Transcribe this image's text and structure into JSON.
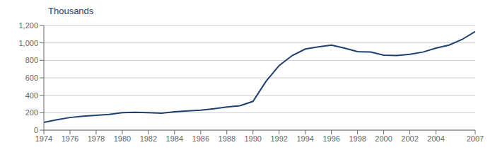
{
  "chart_data": {
    "type": "line",
    "x": [
      1974,
      1975,
      1976,
      1977,
      1978,
      1979,
      1980,
      1981,
      1982,
      1983,
      1984,
      1985,
      1986,
      1987,
      1988,
      1989,
      1990,
      1991,
      1992,
      1993,
      1994,
      1995,
      1996,
      1997,
      1998,
      1999,
      2000,
      2001,
      2002,
      2003,
      2004,
      2005,
      2006,
      2007
    ],
    "values": [
      88,
      120,
      145,
      160,
      170,
      180,
      200,
      205,
      200,
      195,
      210,
      220,
      230,
      245,
      265,
      280,
      330,
      560,
      740,
      855,
      930,
      955,
      975,
      940,
      900,
      895,
      860,
      855,
      870,
      895,
      940,
      975,
      1040,
      1130
    ],
    "color": "#1F3F6E",
    "xlim": [
      1974,
      2007
    ],
    "xticks": [
      1974,
      1976,
      1978,
      1980,
      1982,
      1984,
      1986,
      1988,
      1990,
      1992,
      1994,
      1996,
      1998,
      2000,
      2002,
      2004,
      2007
    ],
    "ylim": [
      0,
      1200
    ],
    "yticks": [
      0,
      200,
      400,
      600,
      800,
      {
        "value": 1000,
        "label": "1,000"
      },
      {
        "value": 1200,
        "label": "1,200"
      }
    ],
    "annotations": [
      "Thousands"
    ],
    "grid": "y"
  }
}
